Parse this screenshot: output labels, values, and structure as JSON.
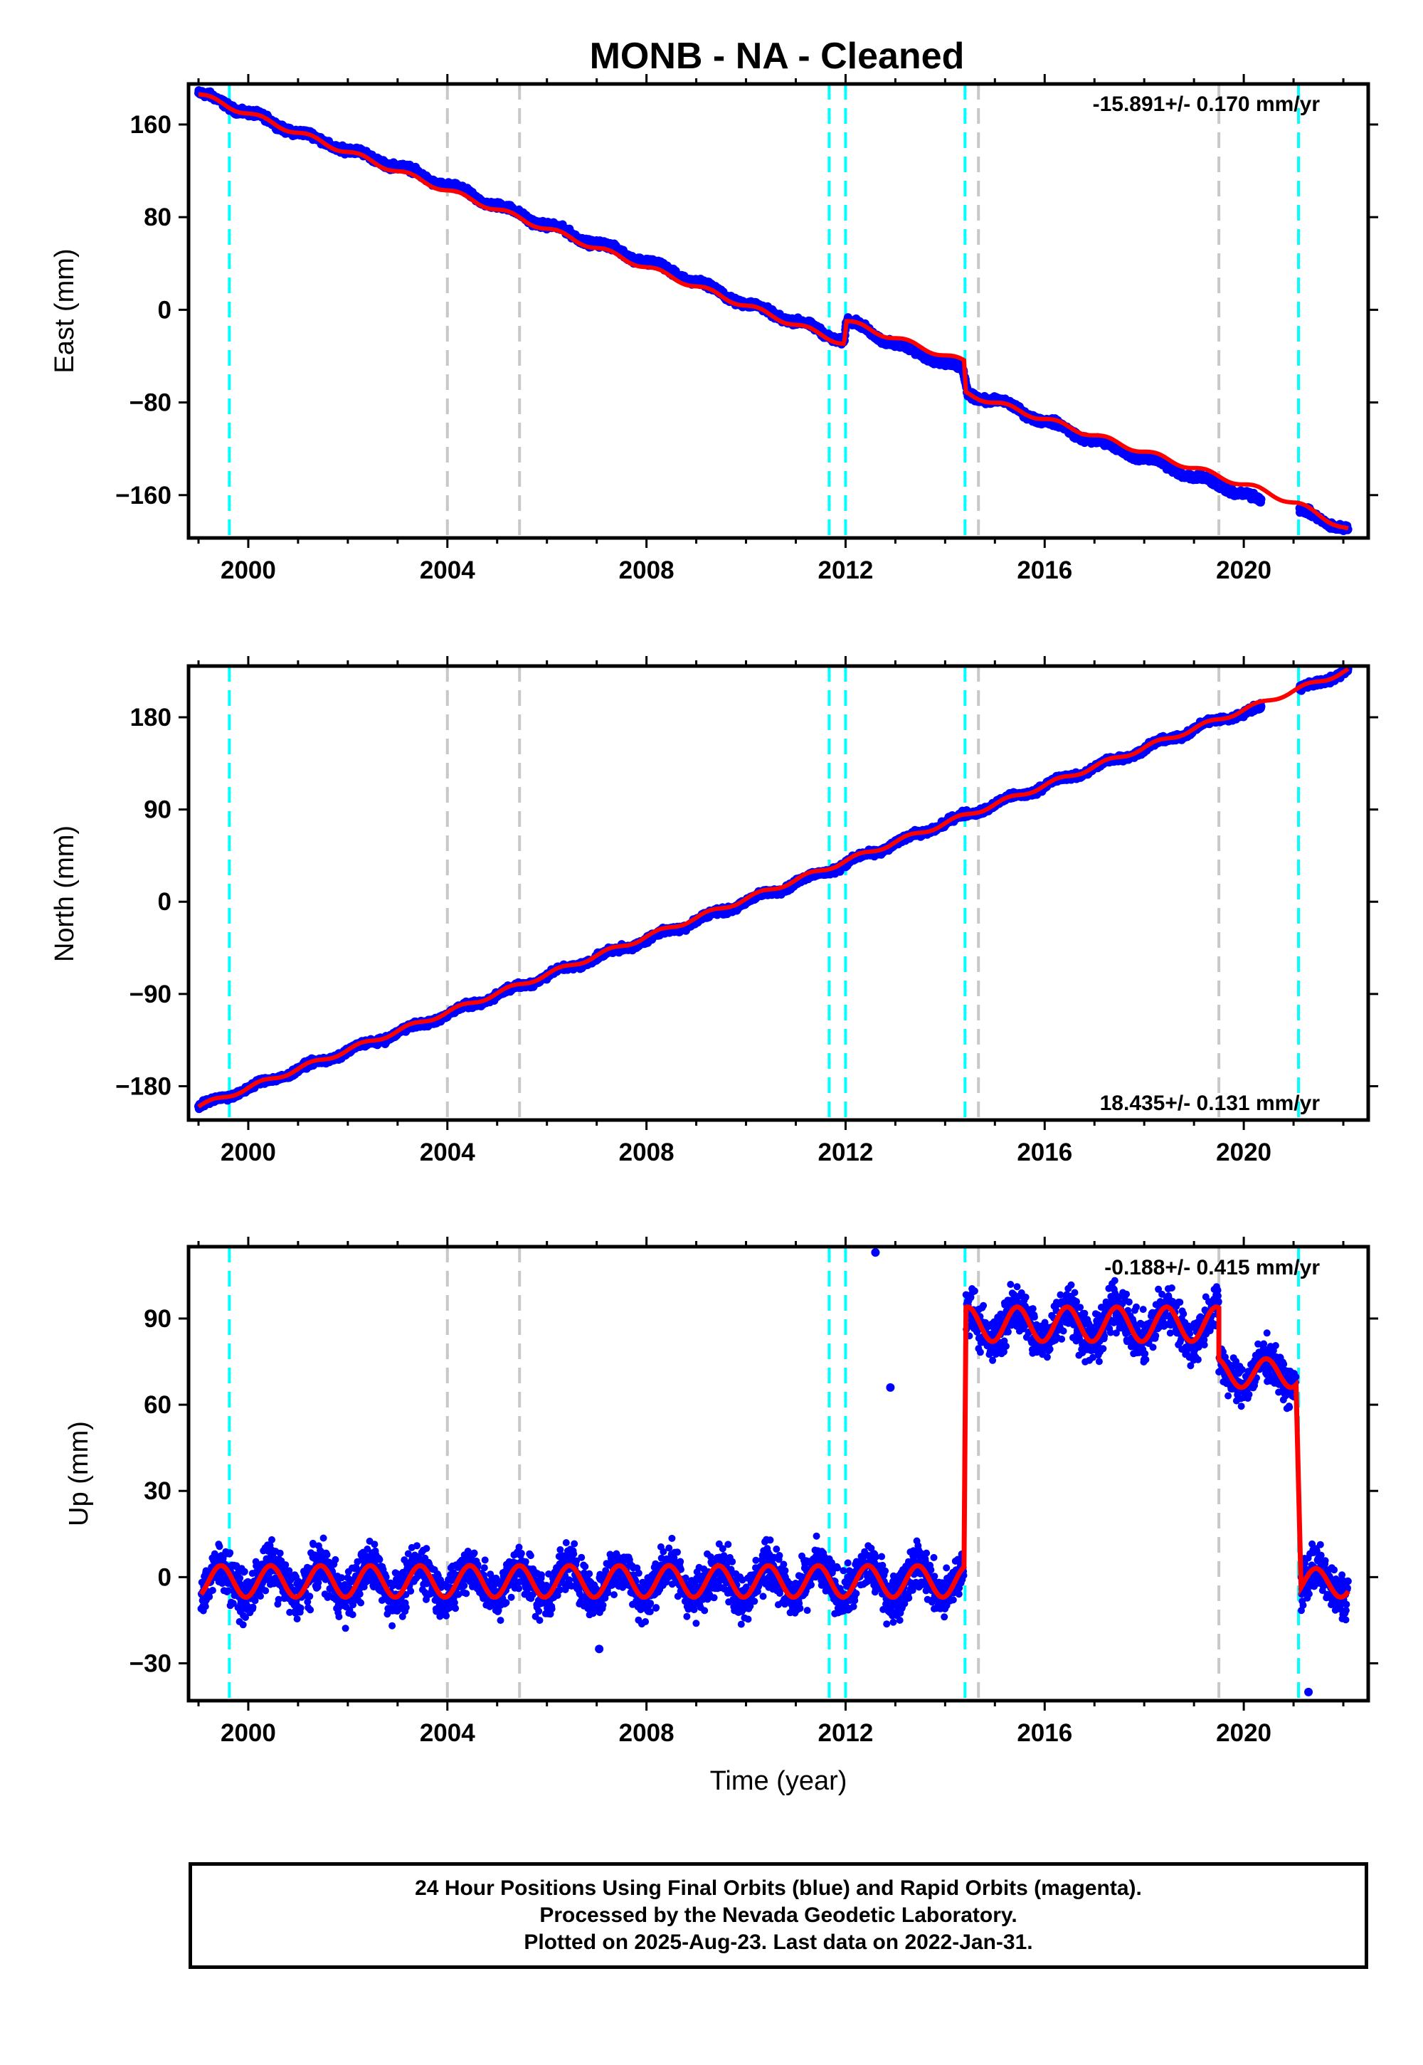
{
  "title": "MONB  - NA - Cleaned",
  "colors": {
    "final_orbits": "#0000ff",
    "model": "#ff0000",
    "offset_equipment": "#00ffff",
    "offset_other": "#c8c8c8",
    "frame": "#000000"
  },
  "x_axis": {
    "label": "Time (year)",
    "range": [
      1998.8,
      2022.5
    ],
    "ticks": [
      2000,
      2004,
      2008,
      2012,
      2016,
      2020
    ]
  },
  "offset_lines": {
    "cyan": [
      1999.62,
      2011.67,
      2012.0,
      2014.4,
      2021.1
    ],
    "gray": [
      2004.0,
      2005.45,
      2014.67,
      2019.5
    ]
  },
  "chart_data": [
    {
      "type": "scatter",
      "component": "east",
      "ylabel": "East (mm)",
      "ylim": [
        -197,
        195
      ],
      "yticks": [
        -160,
        -80,
        0,
        80,
        160
      ],
      "rate_text": "-15.891+/- 0.170 mm/yr",
      "rate_position": "top-right",
      "grid": false,
      "series": [
        {
          "kind": "points",
          "x": [
            1999.0,
            2000.0,
            2001.0,
            2002.0,
            2003.0,
            2004.0,
            2005.0,
            2006.0,
            2007.0,
            2008.0,
            2009.0,
            2010.0,
            2011.0,
            2011.97,
            2012.02,
            2013.0,
            2014.35,
            2014.45,
            2015.0,
            2016.0,
            2017.0,
            2018.0,
            2019.0,
            2020.0,
            2020.3,
            2021.2,
            2022.1
          ],
          "y": [
            187,
            170,
            153,
            138,
            124,
            107,
            90,
            73,
            57,
            42,
            24,
            5,
            -10,
            -27,
            -9,
            -30,
            -52,
            -73,
            -78,
            -96,
            -113,
            -128,
            -144,
            -159,
            -165,
            -175,
            -190
          ]
        },
        {
          "kind": "model",
          "x": [
            1999.0,
            2011.97,
            2012.02,
            2014.38,
            2014.42,
            2020.3,
            2021.1,
            2022.1
          ],
          "y": [
            186,
            -29,
            -10,
            -45,
            -72,
            -155,
            -168,
            -190
          ]
        }
      ]
    },
    {
      "type": "scatter",
      "component": "north",
      "ylabel": "North (mm)",
      "ylim": [
        -213,
        230
      ],
      "yticks": [
        -180,
        -90,
        0,
        90,
        180
      ],
      "rate_text": "18.435+/- 0.131 mm/yr",
      "rate_position": "bottom-right",
      "grid": false,
      "series": [
        {
          "kind": "points",
          "x": [
            1999.0,
            2000.0,
            2002.0,
            2004.0,
            2006.0,
            2008.0,
            2010.0,
            2012.0,
            2014.0,
            2016.0,
            2018.0,
            2019.5,
            2020.3,
            2021.2,
            2022.1
          ],
          "y": [
            -200,
            -182,
            -146,
            -110,
            -72,
            -37,
            0,
            37,
            77,
            113,
            149,
            178,
            188,
            208,
            226
          ]
        },
        {
          "kind": "model",
          "x": [
            1999.0,
            2022.1
          ],
          "y": [
            -200,
            226
          ]
        }
      ]
    },
    {
      "type": "scatter",
      "component": "up",
      "ylabel": "Up (mm)",
      "ylim": [
        -43,
        115
      ],
      "yticks": [
        -30,
        0,
        30,
        60,
        90
      ],
      "rate_text": "-0.188+/- 0.415 mm/yr",
      "rate_position": "top-right",
      "grid": false,
      "segments": [
        {
          "x_start": 1999.05,
          "x_end": 2014.38,
          "mean": -1.5,
          "amplitude": 5.5,
          "scatter": 7
        },
        {
          "x_start": 2014.42,
          "x_end": 2019.5,
          "mean": 88,
          "amplitude": 6,
          "scatter": 7
        },
        {
          "x_start": 2019.5,
          "x_end": 2021.05,
          "mean": 71,
          "amplitude": 5,
          "scatter": 6
        },
        {
          "x_start": 2021.15,
          "x_end": 2022.1,
          "mean": -2,
          "amplitude": 5,
          "scatter": 7
        }
      ],
      "outliers": [
        {
          "x": 2012.6,
          "y": 113
        },
        {
          "x": 2012.9,
          "y": 66
        },
        {
          "x": 2007.05,
          "y": -25
        },
        {
          "x": 2021.3,
          "y": -40
        }
      ]
    }
  ],
  "footer": {
    "line1": "24 Hour Positions Using Final Orbits (blue) and Rapid Orbits (magenta).",
    "line2": "Processed by the Nevada Geodetic Laboratory.",
    "line3": "Plotted on 2025-Aug-23. Last data on 2022-Jan-31."
  }
}
